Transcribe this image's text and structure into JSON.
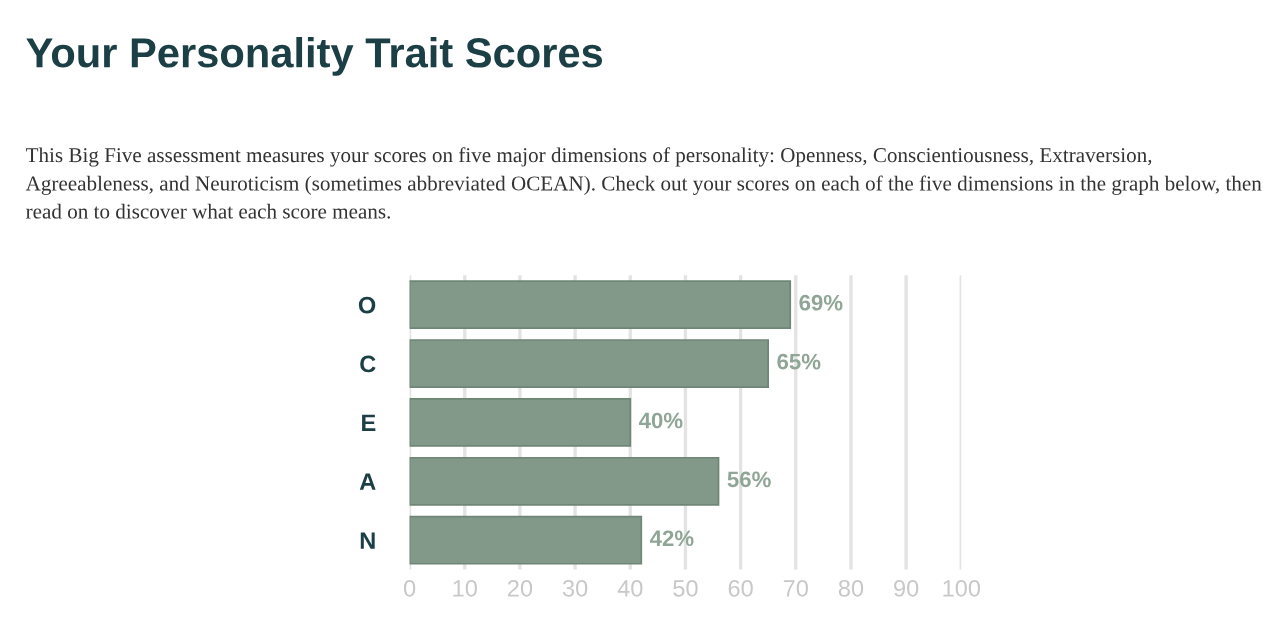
{
  "chart_data": {
    "type": "bar",
    "orientation": "horizontal",
    "title": "Your Personality Trait Scores",
    "subtitle": "This Big Five assessment measures your scores on five major dimensions of personality: Openness, Conscientiousness, Extraversion, Agreeableness, and Neuroticism (sometimes abbreviated OCEAN). Check out your scores on each of the five dimensions in the graph below, then read on to discover what each score means.",
    "categories": [
      "O",
      "C",
      "E",
      "A",
      "N"
    ],
    "values": [
      69,
      65,
      40,
      56,
      42
    ],
    "value_labels": [
      "69%",
      "65%",
      "40%",
      "56%",
      "42%"
    ],
    "color": "#82998a",
    "xlim": [
      0,
      100
    ],
    "xticks": [
      0,
      10,
      20,
      30,
      40,
      50,
      60,
      70,
      80,
      90,
      100
    ],
    "grid": "x"
  }
}
